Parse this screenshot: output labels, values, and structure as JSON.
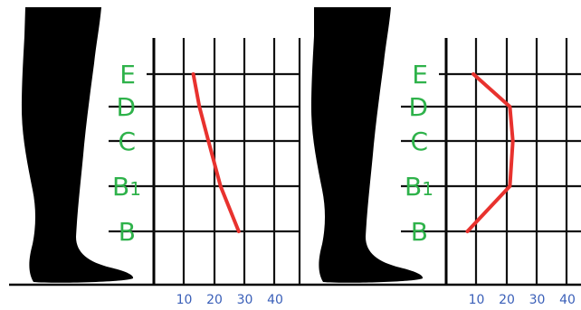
{
  "chart_data": [
    {
      "type": "line",
      "orientation": "horizontal",
      "levels": [
        "B",
        "B1",
        "C",
        "D",
        "E"
      ],
      "level_labels": [
        {
          "main": "B",
          "sub": ""
        },
        {
          "main": "B",
          "sub": "1"
        },
        {
          "main": "C",
          "sub": ""
        },
        {
          "main": "D",
          "sub": ""
        },
        {
          "main": "E",
          "sub": ""
        }
      ],
      "x_ticks": [
        "10",
        "20",
        "30",
        "40"
      ],
      "xlim": [
        0,
        45
      ],
      "grid": true,
      "series": [
        {
          "values": [
            28,
            22,
            18,
            15,
            13
          ]
        }
      ]
    },
    {
      "type": "line",
      "orientation": "horizontal",
      "levels": [
        "B",
        "B1",
        "C",
        "D",
        "E"
      ],
      "level_labels": [
        {
          "main": "B",
          "sub": ""
        },
        {
          "main": "B",
          "sub": "1"
        },
        {
          "main": "C",
          "sub": ""
        },
        {
          "main": "D",
          "sub": ""
        },
        {
          "main": "E",
          "sub": ""
        }
      ],
      "x_ticks": [
        "10",
        "20",
        "30",
        "40"
      ],
      "xlim": [
        0,
        45
      ],
      "grid": true,
      "series": [
        {
          "values": [
            7,
            21,
            22,
            21,
            9
          ]
        }
      ]
    }
  ],
  "colors": {
    "series": "#e8322e",
    "level_labels": "#2eb24a",
    "ticks": "#3a5fb8",
    "silhouette": "#000000"
  },
  "icons": [
    "leg-silhouette-icon",
    "leg-silhouette-icon"
  ]
}
